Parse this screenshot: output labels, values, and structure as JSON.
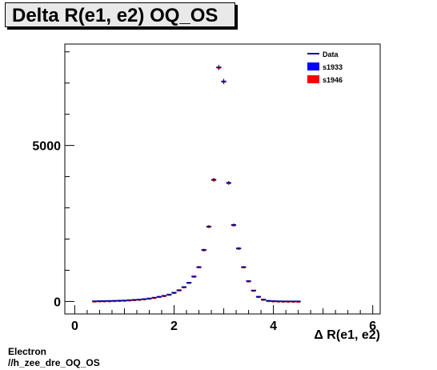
{
  "title": "Delta R(e1, e2) OQ_OS",
  "footer": {
    "line1": "Electron",
    "line2": "//h_zee_dre_OQ_OS"
  },
  "chart_data": {
    "type": "scatter",
    "xlabel": "Δ R(e1, e2)",
    "ylabel": "",
    "xlim": [
      -0.2,
      6.15
    ],
    "ylim": [
      -400,
      8250
    ],
    "x_ticks": [
      0,
      2,
      4,
      6
    ],
    "y_ticks": [
      0,
      5000
    ],
    "legend": {
      "placement": "top-right",
      "entries": [
        "Data",
        "s1933",
        "s1946"
      ]
    },
    "colors": {
      "Data": "#0000aa",
      "s1933": "#0000ff",
      "s1946": "#ff0000"
    },
    "bin_width": 0.1,
    "x": [
      0.4,
      0.5,
      0.6,
      0.7,
      0.8,
      0.9,
      1.0,
      1.1,
      1.2,
      1.3,
      1.4,
      1.5,
      1.6,
      1.7,
      1.8,
      1.9,
      2.0,
      2.1,
      2.2,
      2.3,
      2.4,
      2.5,
      2.6,
      2.7,
      2.8,
      2.9,
      3.0,
      3.1,
      3.2,
      3.3,
      3.4,
      3.5,
      3.6,
      3.7,
      3.8,
      3.9,
      4.0,
      4.1,
      4.2,
      4.3,
      4.4,
      4.5
    ],
    "series": [
      {
        "name": "Data",
        "values": [
          5,
          10,
          12,
          15,
          20,
          25,
          30,
          40,
          50,
          60,
          75,
          95,
          120,
          150,
          180,
          220,
          280,
          360,
          460,
          600,
          800,
          1100,
          1650,
          2400,
          3900,
          7500,
          7050,
          3800,
          2450,
          1700,
          1100,
          650,
          350,
          150,
          60,
          20,
          10,
          5,
          2,
          1,
          0,
          0
        ]
      }
    ]
  }
}
